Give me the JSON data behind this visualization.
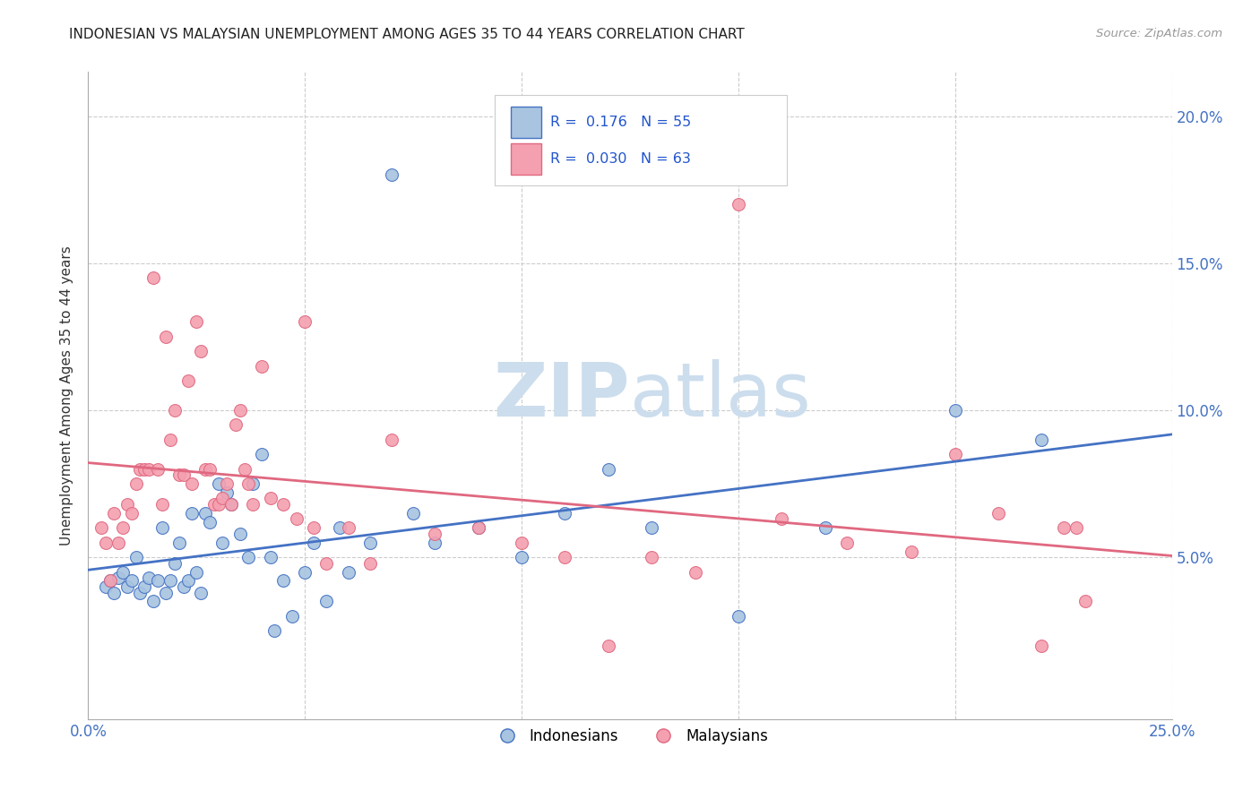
{
  "title": "INDONESIAN VS MALAYSIAN UNEMPLOYMENT AMONG AGES 35 TO 44 YEARS CORRELATION CHART",
  "source": "Source: ZipAtlas.com",
  "ylabel": "Unemployment Among Ages 35 to 44 years",
  "xlim": [
    0.0,
    0.25
  ],
  "ylim": [
    -0.005,
    0.215
  ],
  "indonesian_color": "#a8c4e0",
  "malaysian_color": "#f4a0b0",
  "indonesian_line_color": "#4472c4",
  "malaysian_line_color": "#e06880",
  "watermark_color": "#ccdded",
  "R_indonesian": 0.176,
  "N_indonesian": 55,
  "R_malaysian": 0.03,
  "N_malaysian": 63,
  "indonesian_x": [
    0.004,
    0.005,
    0.006,
    0.007,
    0.008,
    0.009,
    0.01,
    0.011,
    0.012,
    0.013,
    0.014,
    0.015,
    0.016,
    0.017,
    0.018,
    0.019,
    0.02,
    0.021,
    0.022,
    0.023,
    0.024,
    0.025,
    0.026,
    0.027,
    0.028,
    0.03,
    0.031,
    0.032,
    0.033,
    0.035,
    0.037,
    0.038,
    0.04,
    0.042,
    0.043,
    0.045,
    0.047,
    0.05,
    0.052,
    0.055,
    0.058,
    0.06,
    0.065,
    0.07,
    0.075,
    0.08,
    0.09,
    0.1,
    0.11,
    0.12,
    0.13,
    0.15,
    0.17,
    0.2,
    0.22
  ],
  "indonesian_y": [
    0.04,
    0.042,
    0.038,
    0.043,
    0.045,
    0.04,
    0.042,
    0.05,
    0.038,
    0.04,
    0.043,
    0.035,
    0.042,
    0.06,
    0.038,
    0.042,
    0.048,
    0.055,
    0.04,
    0.042,
    0.065,
    0.045,
    0.038,
    0.065,
    0.062,
    0.075,
    0.055,
    0.072,
    0.068,
    0.058,
    0.05,
    0.075,
    0.085,
    0.05,
    0.025,
    0.042,
    0.03,
    0.045,
    0.055,
    0.035,
    0.06,
    0.045,
    0.055,
    0.18,
    0.065,
    0.055,
    0.06,
    0.05,
    0.065,
    0.08,
    0.06,
    0.03,
    0.06,
    0.1,
    0.09
  ],
  "malaysian_x": [
    0.003,
    0.004,
    0.005,
    0.006,
    0.007,
    0.008,
    0.009,
    0.01,
    0.011,
    0.012,
    0.013,
    0.014,
    0.015,
    0.016,
    0.017,
    0.018,
    0.019,
    0.02,
    0.021,
    0.022,
    0.023,
    0.024,
    0.025,
    0.026,
    0.027,
    0.028,
    0.029,
    0.03,
    0.031,
    0.032,
    0.033,
    0.034,
    0.035,
    0.036,
    0.037,
    0.038,
    0.04,
    0.042,
    0.045,
    0.048,
    0.05,
    0.052,
    0.055,
    0.06,
    0.065,
    0.07,
    0.08,
    0.09,
    0.1,
    0.11,
    0.12,
    0.13,
    0.14,
    0.15,
    0.16,
    0.175,
    0.19,
    0.2,
    0.21,
    0.22,
    0.225,
    0.228,
    0.23
  ],
  "malaysian_y": [
    0.06,
    0.055,
    0.042,
    0.065,
    0.055,
    0.06,
    0.068,
    0.065,
    0.075,
    0.08,
    0.08,
    0.08,
    0.145,
    0.08,
    0.068,
    0.125,
    0.09,
    0.1,
    0.078,
    0.078,
    0.11,
    0.075,
    0.13,
    0.12,
    0.08,
    0.08,
    0.068,
    0.068,
    0.07,
    0.075,
    0.068,
    0.095,
    0.1,
    0.08,
    0.075,
    0.068,
    0.115,
    0.07,
    0.068,
    0.063,
    0.13,
    0.06,
    0.048,
    0.06,
    0.048,
    0.09,
    0.058,
    0.06,
    0.055,
    0.05,
    0.02,
    0.05,
    0.045,
    0.17,
    0.063,
    0.055,
    0.052,
    0.085,
    0.065,
    0.02,
    0.06,
    0.06,
    0.035
  ]
}
